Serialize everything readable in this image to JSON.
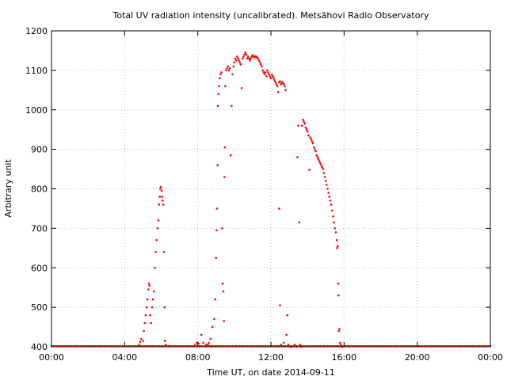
{
  "chart_data": {
    "type": "scatter",
    "title": "Total UV radiation intensity (uncalibrated). Metsähovi Radio Observatory",
    "xlabel": "Time UT, on date 2014-09-11",
    "ylabel": "Arbitrary unit",
    "xlim": [
      0,
      24
    ],
    "ylim": [
      400,
      1200
    ],
    "x_ticks": [
      0,
      4,
      8,
      12,
      16,
      20,
      24
    ],
    "x_tick_labels": [
      "00:00",
      "04:00",
      "08:00",
      "12:00",
      "16:00",
      "20:00",
      "00:00"
    ],
    "y_ticks": [
      400,
      500,
      600,
      700,
      800,
      900,
      1000,
      1100,
      1200
    ],
    "y_tick_labels": [
      "400",
      "500",
      "600",
      "700",
      "800",
      "900",
      "1000",
      "1100",
      "1200"
    ],
    "grid": true,
    "legend": "none",
    "marker_color": "#ff0000",
    "baseline": {
      "y": 400,
      "x_start": 0,
      "x_end": 24,
      "step": 0.1
    },
    "series": [
      {
        "values": [
          [
            4.8,
            405
          ],
          [
            4.85,
            412
          ],
          [
            4.9,
            420
          ],
          [
            5.0,
            415
          ],
          [
            5.05,
            440
          ],
          [
            5.1,
            460
          ],
          [
            5.15,
            480
          ],
          [
            5.2,
            500
          ],
          [
            5.25,
            520
          ],
          [
            5.3,
            545
          ],
          [
            5.33,
            560
          ],
          [
            5.36,
            555
          ],
          [
            5.4,
            480
          ],
          [
            5.45,
            460
          ],
          [
            5.5,
            500
          ],
          [
            5.55,
            520
          ],
          [
            5.6,
            540
          ],
          [
            5.65,
            600
          ],
          [
            5.7,
            640
          ],
          [
            5.75,
            670
          ],
          [
            5.8,
            700
          ],
          [
            5.85,
            720
          ],
          [
            5.88,
            760
          ],
          [
            5.92,
            780
          ],
          [
            5.95,
            800
          ],
          [
            5.98,
            805
          ],
          [
            6.02,
            795
          ],
          [
            6.05,
            780
          ],
          [
            6.08,
            770
          ],
          [
            6.12,
            760
          ],
          [
            6.15,
            640
          ],
          [
            6.18,
            500
          ],
          [
            6.2,
            415
          ],
          [
            6.25,
            405
          ],
          [
            7.85,
            405
          ],
          [
            7.95,
            410
          ],
          [
            8.05,
            408
          ],
          [
            8.2,
            430
          ],
          [
            8.3,
            410
          ],
          [
            8.45,
            405
          ],
          [
            8.55,
            405
          ],
          [
            8.6,
            410
          ],
          [
            8.7,
            420
          ],
          [
            8.8,
            450
          ],
          [
            8.9,
            470
          ],
          [
            8.95,
            520
          ],
          [
            9.0,
            625
          ],
          [
            9.03,
            695
          ],
          [
            9.05,
            750
          ],
          [
            9.08,
            860
          ],
          [
            9.1,
            1010
          ],
          [
            9.13,
            1040
          ],
          [
            9.16,
            1060
          ],
          [
            9.2,
            1080
          ],
          [
            9.25,
            1090
          ],
          [
            9.3,
            1095
          ],
          [
            9.33,
            700
          ],
          [
            9.36,
            560
          ],
          [
            9.4,
            540
          ],
          [
            9.43,
            465
          ],
          [
            9.46,
            830
          ],
          [
            9.48,
            905
          ],
          [
            9.5,
            1060
          ],
          [
            9.55,
            1100
          ],
          [
            9.6,
            1105
          ],
          [
            9.65,
            1110
          ],
          [
            9.7,
            1100
          ],
          [
            9.75,
            1105
          ],
          [
            9.8,
            885
          ],
          [
            9.85,
            1010
          ],
          [
            9.9,
            1090
          ],
          [
            9.95,
            1110
          ],
          [
            10.0,
            1120
          ],
          [
            10.05,
            1130
          ],
          [
            10.1,
            1125
          ],
          [
            10.15,
            1135
          ],
          [
            10.2,
            1130
          ],
          [
            10.25,
            1125
          ],
          [
            10.3,
            1120
          ],
          [
            10.35,
            1115
          ],
          [
            10.4,
            1055
          ],
          [
            10.45,
            1130
          ],
          [
            10.5,
            1135
          ],
          [
            10.55,
            1140
          ],
          [
            10.6,
            1145
          ],
          [
            10.65,
            1140
          ],
          [
            10.7,
            1130
          ],
          [
            10.75,
            1135
          ],
          [
            10.8,
            1130
          ],
          [
            10.85,
            1125
          ],
          [
            10.9,
            1130
          ],
          [
            10.95,
            1135
          ],
          [
            11.0,
            1138
          ],
          [
            11.05,
            1135
          ],
          [
            11.1,
            1133
          ],
          [
            11.15,
            1136
          ],
          [
            11.2,
            1135
          ],
          [
            11.25,
            1132
          ],
          [
            11.3,
            1130
          ],
          [
            11.35,
            1125
          ],
          [
            11.4,
            1120
          ],
          [
            11.45,
            1115
          ],
          [
            11.5,
            1110
          ],
          [
            11.55,
            1100
          ],
          [
            11.6,
            1095
          ],
          [
            11.65,
            1090
          ],
          [
            11.7,
            1095
          ],
          [
            11.75,
            1085
          ],
          [
            11.8,
            1100
          ],
          [
            11.85,
            1095
          ],
          [
            11.9,
            1090
          ],
          [
            11.95,
            1085
          ],
          [
            12.0,
            1080
          ],
          [
            12.05,
            1090
          ],
          [
            12.1,
            1085
          ],
          [
            12.15,
            1080
          ],
          [
            12.2,
            1075
          ],
          [
            12.25,
            1070
          ],
          [
            12.3,
            1065
          ],
          [
            12.35,
            1060
          ],
          [
            12.4,
            1045
          ],
          [
            12.45,
            1070
          ],
          [
            12.5,
            1072
          ],
          [
            12.55,
            1065
          ],
          [
            12.6,
            1070
          ],
          [
            12.65,
            1068
          ],
          [
            12.7,
            1065
          ],
          [
            12.75,
            1060
          ],
          [
            12.8,
            1050
          ],
          [
            12.45,
            750
          ],
          [
            12.5,
            505
          ],
          [
            12.55,
            405
          ],
          [
            12.7,
            410
          ],
          [
            12.85,
            430
          ],
          [
            12.9,
            480
          ],
          [
            12.95,
            405
          ],
          [
            13.1,
            400
          ],
          [
            13.3,
            405
          ],
          [
            13.4,
            400
          ],
          [
            13.45,
            880
          ],
          [
            13.5,
            960
          ],
          [
            13.55,
            715
          ],
          [
            13.6,
            405
          ],
          [
            13.65,
            400
          ],
          [
            13.7,
            960
          ],
          [
            13.75,
            975
          ],
          [
            13.8,
            970
          ],
          [
            13.85,
            965
          ],
          [
            13.9,
            955
          ],
          [
            13.95,
            950
          ],
          [
            14.0,
            945
          ],
          [
            14.05,
            935
          ],
          [
            14.1,
            848
          ],
          [
            14.15,
            930
          ],
          [
            14.2,
            925
          ],
          [
            14.25,
            920
          ],
          [
            14.3,
            915
          ],
          [
            14.35,
            905
          ],
          [
            14.4,
            900
          ],
          [
            14.45,
            895
          ],
          [
            14.5,
            885
          ],
          [
            14.55,
            880
          ],
          [
            14.6,
            875
          ],
          [
            14.65,
            870
          ],
          [
            14.7,
            865
          ],
          [
            14.75,
            860
          ],
          [
            14.8,
            855
          ],
          [
            14.85,
            850
          ],
          [
            14.9,
            840
          ],
          [
            14.95,
            830
          ],
          [
            15.0,
            820
          ],
          [
            15.05,
            810
          ],
          [
            15.1,
            800
          ],
          [
            15.15,
            790
          ],
          [
            15.2,
            780
          ],
          [
            15.25,
            770
          ],
          [
            15.3,
            760
          ],
          [
            15.35,
            745
          ],
          [
            15.4,
            730
          ],
          [
            15.45,
            715
          ],
          [
            15.5,
            700
          ],
          [
            15.55,
            690
          ],
          [
            15.6,
            670
          ],
          [
            15.62,
            650
          ],
          [
            15.65,
            655
          ],
          [
            15.68,
            560
          ],
          [
            15.7,
            530
          ],
          [
            15.72,
            440
          ],
          [
            15.75,
            445
          ],
          [
            15.78,
            410
          ],
          [
            15.82,
            405
          ],
          [
            15.9,
            400
          ]
        ]
      }
    ]
  }
}
